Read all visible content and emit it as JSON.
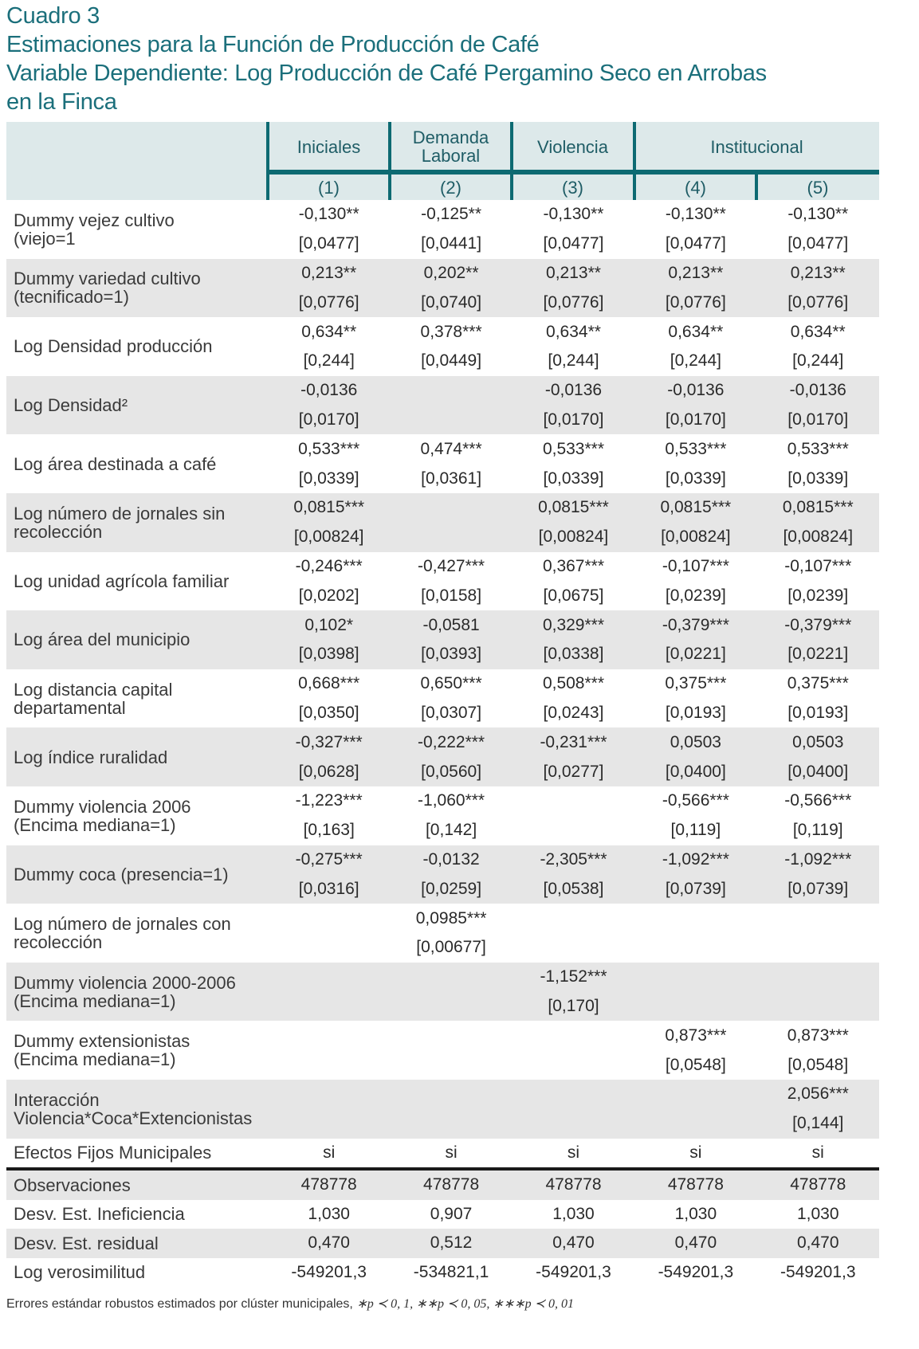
{
  "title": {
    "lines": [
      "Cuadro 3",
      "Estimaciones para la Función de Producción de Café",
      "Variable Dependiente: Log Producción de Café Pergamino Seco en Arrobas",
      "en la Finca"
    ]
  },
  "header": {
    "groups": [
      "Iniciales",
      "Demanda Laboral",
      "Violencia",
      "Institucional"
    ],
    "models": [
      "(1)",
      "(2)",
      "(3)",
      "(4)",
      "(5)"
    ]
  },
  "rows": [
    {
      "label": [
        "Dummy vejez cultivo",
        "(viejo=1"
      ],
      "coef": [
        "-0,130**",
        "-0,125**",
        "-0,130**",
        "-0,130**",
        "-0,130**"
      ],
      "se": [
        "[0,0477]",
        "[0,0441]",
        "[0,0477]",
        "[0,0477]",
        "[0,0477]"
      ]
    },
    {
      "label": [
        "Dummy variedad cultivo",
        "(tecnificado=1)"
      ],
      "coef": [
        "0,213**",
        "0,202**",
        "0,213**",
        "0,213**",
        "0,213**"
      ],
      "se": [
        "[0,0776]",
        "[0,0740]",
        "[0,0776]",
        "[0,0776]",
        "[0,0776]"
      ]
    },
    {
      "label": [
        "Log Densidad producción"
      ],
      "coef": [
        "0,634**",
        "0,378***",
        "0,634**",
        "0,634**",
        "0,634**"
      ],
      "se": [
        "[0,244]",
        "[0,0449]",
        "[0,244]",
        "[0,244]",
        "[0,244]"
      ]
    },
    {
      "label": [
        "Log Densidad²"
      ],
      "coef": [
        "-0,0136",
        "",
        "-0,0136",
        "-0,0136",
        "-0,0136"
      ],
      "se": [
        "[0,0170]",
        "",
        "[0,0170]",
        "[0,0170]",
        "[0,0170]"
      ]
    },
    {
      "label": [
        "Log área destinada a café"
      ],
      "coef": [
        "0,533***",
        "0,474***",
        "0,533***",
        "0,533***",
        "0,533***"
      ],
      "se": [
        "[0,0339]",
        "[0,0361]",
        "[0,0339]",
        "[0,0339]",
        "[0,0339]"
      ]
    },
    {
      "label": [
        "Log número de jornales sin",
        "recolección"
      ],
      "coef": [
        "0,0815***",
        "",
        "0,0815***",
        "0,0815***",
        "0,0815***"
      ],
      "se": [
        "[0,00824]",
        "",
        "[0,00824]",
        "[0,00824]",
        "[0,00824]"
      ]
    },
    {
      "label": [
        "Log unidad agrícola familiar"
      ],
      "coef": [
        "-0,246***",
        "-0,427***",
        "0,367***",
        "-0,107***",
        "-0,107***"
      ],
      "se": [
        "[0,0202]",
        "[0,0158]",
        "[0,0675]",
        "[0,0239]",
        "[0,0239]"
      ]
    },
    {
      "label": [
        "Log área del municipio"
      ],
      "coef": [
        "0,102*",
        "-0,0581",
        "0,329***",
        "-0,379***",
        "-0,379***"
      ],
      "se": [
        "[0,0398]",
        "[0,0393]",
        "[0,0338]",
        "[0,0221]",
        "[0,0221]"
      ]
    },
    {
      "label": [
        "Log distancia capital",
        "departamental"
      ],
      "coef": [
        "0,668***",
        "0,650***",
        "0,508***",
        "0,375***",
        "0,375***"
      ],
      "se": [
        "[0,0350]",
        "[0,0307]",
        "[0,0243]",
        "[0,0193]",
        "[0,0193]"
      ]
    },
    {
      "label": [
        "Log índice ruralidad"
      ],
      "coef": [
        "-0,327***",
        "-0,222***",
        "-0,231***",
        "0,0503",
        "0,0503"
      ],
      "se": [
        "[0,0628]",
        "[0,0560]",
        "[0,0277]",
        "[0,0400]",
        "[0,0400]"
      ]
    },
    {
      "label": [
        "Dummy violencia 2006",
        "(Encima mediana=1)"
      ],
      "coef": [
        "-1,223***",
        "-1,060***",
        "",
        "-0,566***",
        "-0,566***"
      ],
      "se": [
        "[0,163]",
        "[0,142]",
        "",
        "[0,119]",
        "[0,119]"
      ]
    },
    {
      "label": [
        "Dummy coca (presencia=1)"
      ],
      "coef": [
        "-0,275***",
        "-0,0132",
        "-2,305***",
        "-1,092***",
        "-1,092***"
      ],
      "se": [
        "[0,0316]",
        "[0,0259]",
        "[0,0538]",
        "[0,0739]",
        "[0,0739]"
      ]
    },
    {
      "label": [
        "Log número de jornales con",
        "recolección"
      ],
      "coef": [
        "",
        "0,0985***",
        "",
        "",
        ""
      ],
      "se": [
        "",
        "[0,00677]",
        "",
        "",
        ""
      ]
    },
    {
      "label": [
        "Dummy violencia 2000-2006",
        "(Encima mediana=1)"
      ],
      "coef": [
        "",
        "",
        "-1,152***",
        "",
        ""
      ],
      "se": [
        "",
        "",
        "[0,170]",
        "",
        ""
      ]
    },
    {
      "label": [
        "Dummy extensionistas",
        "(Encima mediana=1)"
      ],
      "coef": [
        "",
        "",
        "",
        "0,873***",
        "0,873***"
      ],
      "se": [
        "",
        "",
        "",
        "[0,0548]",
        "[0,0548]"
      ]
    },
    {
      "label": [
        "Interacción",
        "Violencia*Coca*Extencionistas"
      ],
      "coef": [
        "",
        "",
        "",
        "",
        "2,056***"
      ],
      "se": [
        "",
        "",
        "",
        "",
        "[0,144]"
      ]
    }
  ],
  "fixed_effects": {
    "label": "Efectos Fijos Municipales",
    "values": [
      "si",
      "si",
      "si",
      "si",
      "si"
    ]
  },
  "stats": [
    {
      "label": "Observaciones",
      "values": [
        "478778",
        "478778",
        "478778",
        "478778",
        "478778"
      ]
    },
    {
      "label": "Desv. Est. Ineficiencia",
      "values": [
        "1,030",
        "0,907",
        "1,030",
        "1,030",
        "1,030"
      ]
    },
    {
      "label": "Desv. Est. residual",
      "values": [
        "0,470",
        "0,512",
        "0,470",
        "0,470",
        "0,470"
      ]
    },
    {
      "label": "Log verosimilitud",
      "values": [
        "-549201,3",
        "-534821,1",
        "-549201,3",
        "-549201,3",
        "-549201,3"
      ]
    }
  ],
  "footnote": {
    "text": "Errores estándar robustos estimados por clúster municipales,",
    "signif": "∗p ≺ 0, 1, ∗∗p ≺ 0, 05, ∗∗∗p ≺ 0, 01"
  },
  "colors": {
    "accent": "#1b6f7b",
    "header_bg": "#dde9ea",
    "rule": "#0d6a72",
    "stripe": "#e6e6e6"
  }
}
